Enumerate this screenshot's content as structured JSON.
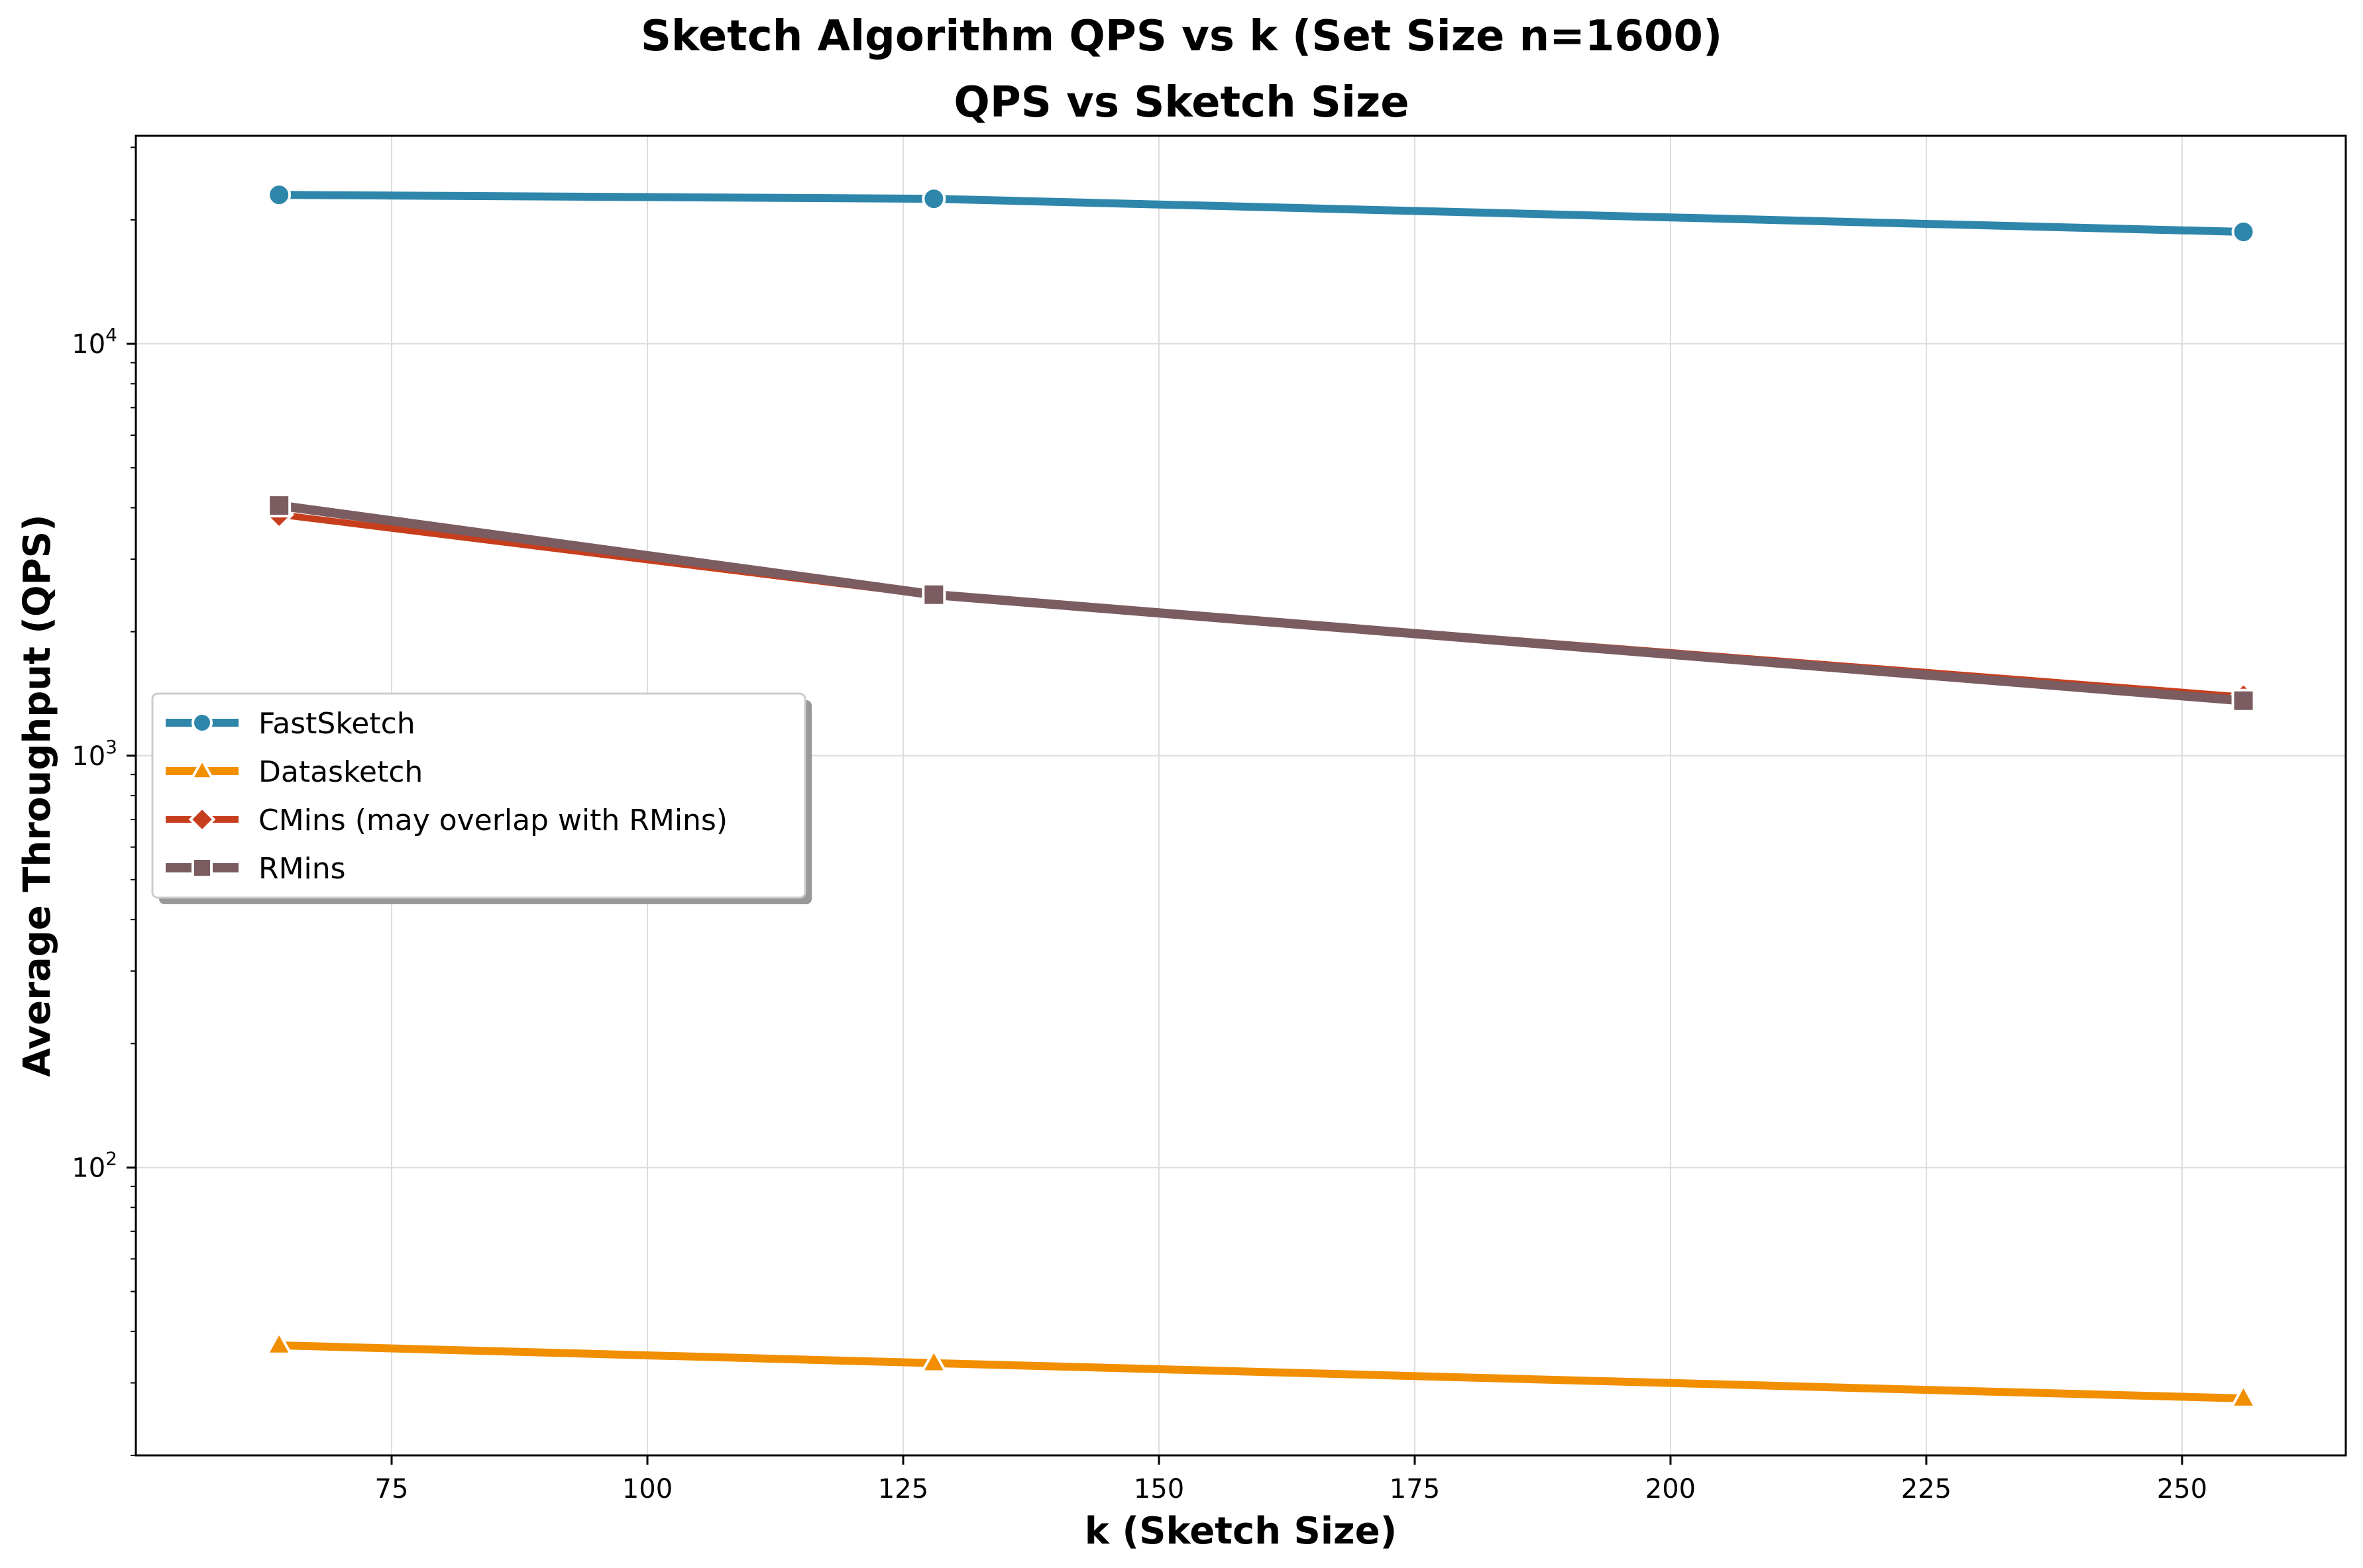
{
  "chart_data": {
    "type": "line",
    "suptitle": "Sketch Algorithm QPS vs k (Set Size n=1600)",
    "title": "QPS vs Sketch Size",
    "xlabel": "k (Sketch Size)",
    "ylabel": "Average Throughput (QPS)",
    "x_scale": "linear",
    "y_scale": "log",
    "xlim": [
      50,
      266
    ],
    "ylim": [
      20,
      32000
    ],
    "x_ticks": [
      75,
      100,
      125,
      150,
      175,
      200,
      225,
      250
    ],
    "y_ticks": [
      {
        "value": 100,
        "base": "10",
        "exp": "2"
      },
      {
        "value": 1000,
        "base": "10",
        "exp": "3"
      },
      {
        "value": 10000,
        "base": "10",
        "exp": "4"
      }
    ],
    "grid": true,
    "legend_position": "center-left",
    "x": [
      64,
      128,
      256
    ],
    "series": [
      {
        "name": "FastSketch",
        "values": [
          23000,
          22500,
          18700
        ],
        "color": "#2e86ab",
        "marker": "circle",
        "width": 12
      },
      {
        "name": "Datasketch",
        "values": [
          37,
          33.5,
          27.5
        ],
        "color": "#f18f01",
        "marker": "triangle",
        "width": 12
      },
      {
        "name": "CMins (may overlap with RMins)",
        "values": [
          3850,
          2450,
          1390
        ],
        "color": "#c73e1d",
        "marker": "diamond",
        "width": 10
      },
      {
        "name": "RMins",
        "values": [
          4050,
          2460,
          1360
        ],
        "color": "#7a5c61",
        "marker": "square",
        "width": 14
      }
    ]
  }
}
